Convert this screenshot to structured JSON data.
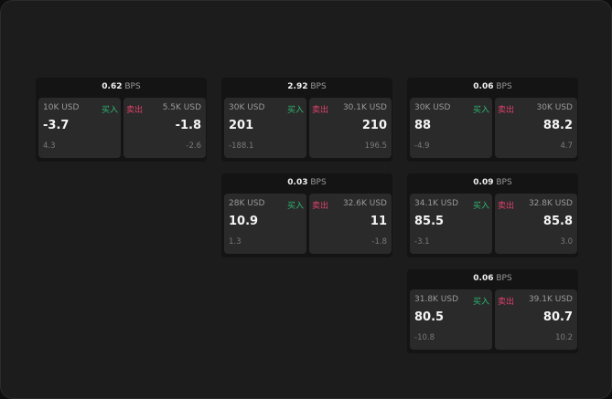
{
  "unit_label": "BPS",
  "buy_label": "买入",
  "sell_label": "卖出",
  "colors": {
    "buy": "#2eb872",
    "sell": "#e0406a"
  },
  "panels": [
    {
      "spread": "0.62",
      "buy": {
        "qty": "10K USD",
        "price": "-3.7",
        "change": "4.3"
      },
      "sell": {
        "qty": "5.5K USD",
        "price": "-1.8",
        "change": "-2.6"
      }
    },
    {
      "spread": "2.92",
      "buy": {
        "qty": "30K USD",
        "price": "201",
        "change": "-188.1"
      },
      "sell": {
        "qty": "30.1K USD",
        "price": "210",
        "change": "196.5"
      }
    },
    {
      "spread": "0.06",
      "buy": {
        "qty": "30K USD",
        "price": "88",
        "change": "-4.9"
      },
      "sell": {
        "qty": "30K USD",
        "price": "88.2",
        "change": "4.7"
      }
    },
    {
      "spread": "0.03",
      "buy": {
        "qty": "28K USD",
        "price": "10.9",
        "change": "1.3"
      },
      "sell": {
        "qty": "32.6K USD",
        "price": "11",
        "change": "-1.8"
      }
    },
    {
      "spread": "0.09",
      "buy": {
        "qty": "34.1K USD",
        "price": "85.5",
        "change": "-3.1"
      },
      "sell": {
        "qty": "32.8K USD",
        "price": "85.8",
        "change": "3.0"
      }
    },
    {
      "spread": "0.06",
      "buy": {
        "qty": "31.8K USD",
        "price": "80.5",
        "change": "-10.8"
      },
      "sell": {
        "qty": "39.1K USD",
        "price": "80.7",
        "change": "10.2"
      }
    }
  ]
}
